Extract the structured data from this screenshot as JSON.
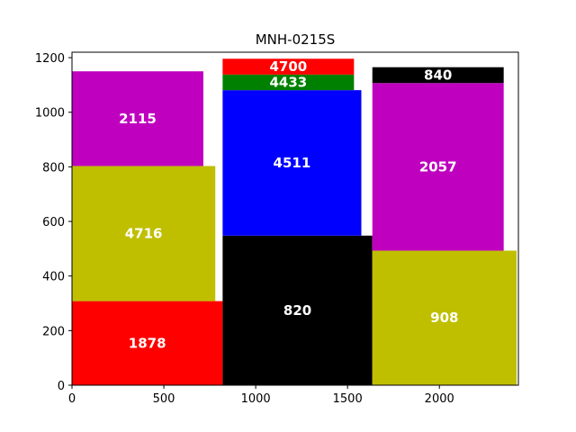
{
  "chart_data": {
    "type": "treemap",
    "title": "MNH-0215S",
    "xlim": [
      0,
      2430
    ],
    "ylim": [
      0,
      1220
    ],
    "x_ticks": [
      0,
      500,
      1000,
      1500,
      2000
    ],
    "y_ticks": [
      0,
      200,
      400,
      600,
      800,
      1000,
      1200
    ],
    "grid": false,
    "colors": {
      "red": "#ff0000",
      "yellow": "#bfbf00",
      "magenta": "#bf00bf",
      "black": "#000000",
      "blue": "#0000ff",
      "green": "#008000"
    },
    "rects": [
      {
        "label": "1878",
        "x": 0,
        "y": 0,
        "w": 820,
        "h": 308,
        "color": "#ff0000"
      },
      {
        "label": "4716",
        "x": 0,
        "y": 308,
        "w": 780,
        "h": 495,
        "color": "#bfbf00"
      },
      {
        "label": "2115",
        "x": 0,
        "y": 803,
        "w": 715,
        "h": 347,
        "color": "#bf00bf"
      },
      {
        "label": "820",
        "x": 820,
        "y": 0,
        "w": 815,
        "h": 548,
        "color": "#000000"
      },
      {
        "label": "4511",
        "x": 820,
        "y": 548,
        "w": 755,
        "h": 533,
        "color": "#0000ff"
      },
      {
        "label": "4433",
        "x": 820,
        "y": 1081,
        "w": 715,
        "h": 57,
        "color": "#008000"
      },
      {
        "label": "4700",
        "x": 820,
        "y": 1138,
        "w": 715,
        "h": 58,
        "color": "#ff0000"
      },
      {
        "label": "908",
        "x": 1635,
        "y": 0,
        "w": 785,
        "h": 493,
        "color": "#bfbf00"
      },
      {
        "label": "2057",
        "x": 1635,
        "y": 493,
        "w": 715,
        "h": 614,
        "color": "#bf00bf"
      },
      {
        "label": "840",
        "x": 1635,
        "y": 1107,
        "w": 715,
        "h": 58,
        "color": "#000000"
      }
    ]
  }
}
